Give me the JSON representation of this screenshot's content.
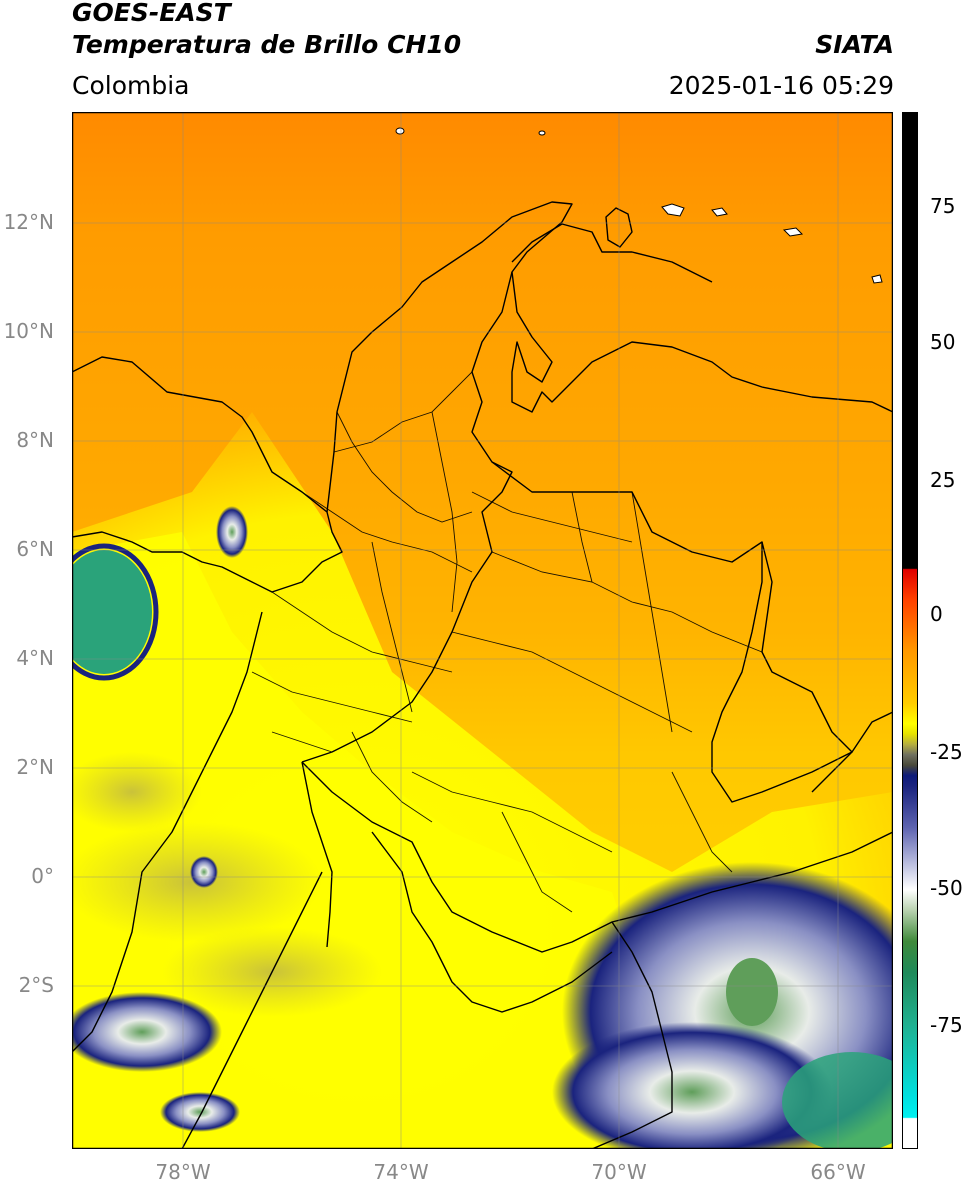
{
  "header": {
    "title_line1": "GOES-EAST",
    "title_line2": "Temperatura de Brillo CH10",
    "brand": "SIATA",
    "region": "Colombia",
    "datetime": "2025-01-16 05:29"
  },
  "map": {
    "lat_labels": [
      "12°N",
      "10°N",
      "8°N",
      "6°N",
      "4°N",
      "2°N",
      "0°",
      "2°S"
    ],
    "lon_labels": [
      "78°W",
      "74°W",
      "70°W",
      "66°W"
    ],
    "colors": {
      "warm": "#ff9900",
      "yellow": "#ffff00",
      "cold_blue": "#0d1a7a",
      "frame": "#000000",
      "grid": "#888888"
    }
  },
  "colorbar": {
    "ticks": [
      "75",
      "50",
      "25",
      "0",
      "-25",
      "-50",
      "-75"
    ]
  }
}
